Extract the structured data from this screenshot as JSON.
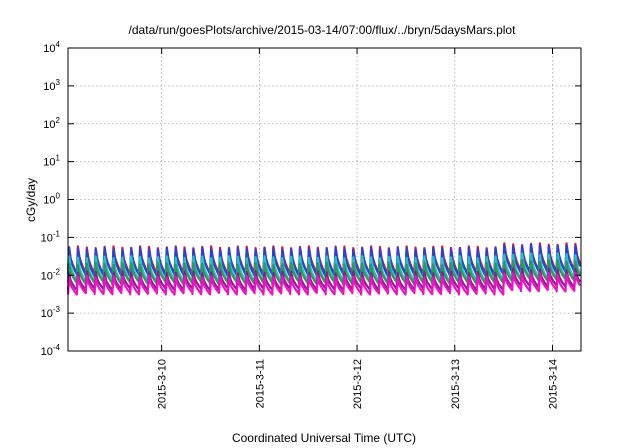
{
  "chart_data": {
    "type": "line",
    "title": "/data/run/goesPlots/archive/2015-03-14/07:00/flux/../bryn/5daysMars.plot",
    "xlabel": "Coordinated Universal Time (UTC)",
    "ylabel": "cGy/day",
    "y_scale": "log",
    "ylim": [
      0.0001,
      10000
    ],
    "y_ticks": [
      {
        "base": "10",
        "exp": "4",
        "value": 10000
      },
      {
        "base": "10",
        "exp": "3",
        "value": 1000
      },
      {
        "base": "10",
        "exp": "2",
        "value": 100
      },
      {
        "base": "10",
        "exp": "1",
        "value": 10
      },
      {
        "base": "10",
        "exp": "0",
        "value": 1
      },
      {
        "base": "10",
        "exp": "-1",
        "value": 0.1
      },
      {
        "base": "10",
        "exp": "-2",
        "value": 0.01
      },
      {
        "base": "10",
        "exp": "-3",
        "value": 0.001
      },
      {
        "base": "10",
        "exp": "-4",
        "value": 0.0001
      }
    ],
    "xlim": [
      "2015-03-09 01:00",
      "2015-03-14 07:00"
    ],
    "x_ticks": [
      "2015-3-10",
      "2015-3-11",
      "2015-3-12",
      "2015-3-13",
      "2015-3-14"
    ],
    "grid": true,
    "pattern": "sawtooth, about 11 cycles per day",
    "series": [
      {
        "color": "#e8102a",
        "peak": 0.055,
        "trough": 0.011
      },
      {
        "color": "#2345d8",
        "peak": 0.05,
        "trough": 0.01
      },
      {
        "color": "#1ec6c6",
        "peak": 0.03,
        "trough": 0.0068
      },
      {
        "color": "#2c9a55",
        "peak": 0.02,
        "trough": 0.0062
      },
      {
        "color": "#8a1f8a",
        "peak": 0.012,
        "trough": 0.0042
      },
      {
        "color": "#ef10c8",
        "peak": 0.009,
        "trough": 0.0033
      }
    ]
  }
}
